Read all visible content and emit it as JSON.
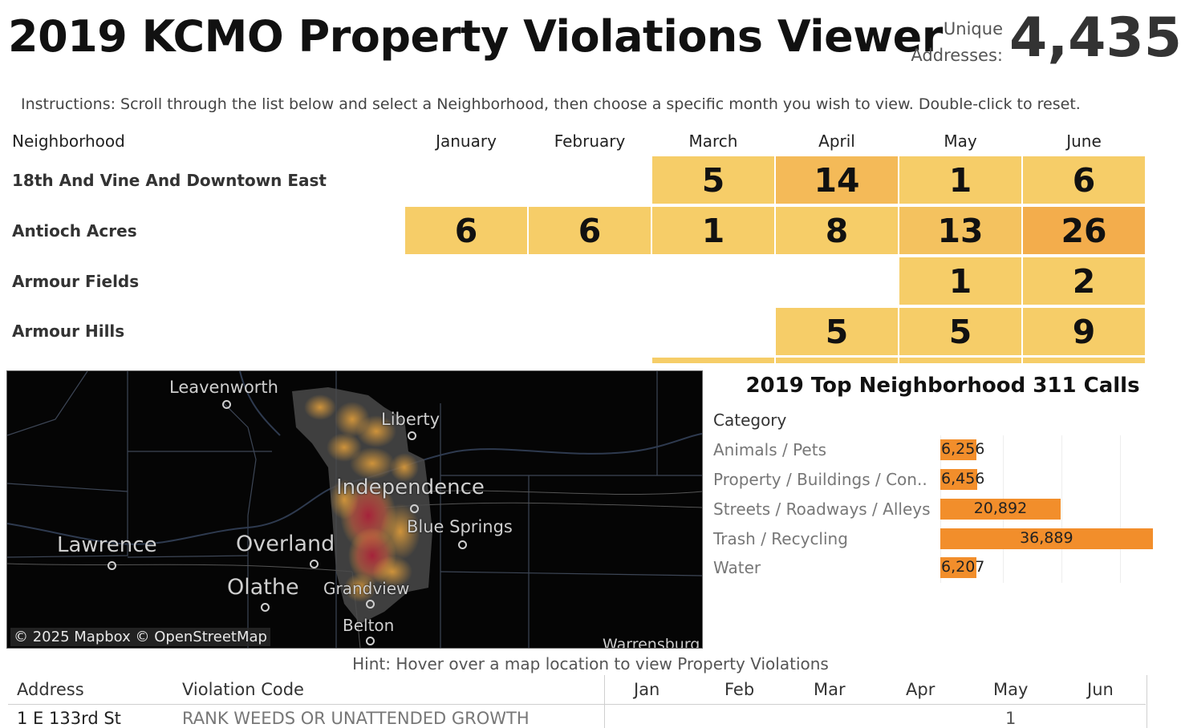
{
  "header": {
    "title": "2019 KCMO Property Violations Viewer",
    "unique_label_line1": "Unique",
    "unique_label_line2": "Addresses:",
    "unique_value": "4,435"
  },
  "instructions": "Instructions: Scroll through the list below and select a Neighborhood, then choose a specific month you wish to view. Double-click to reset.",
  "heat_table": {
    "neighborhood_header": "Neighborhood",
    "months": [
      "January",
      "February",
      "March",
      "April",
      "May",
      "June"
    ],
    "rows": [
      {
        "name": "18th And Vine And Downtown East",
        "values": [
          null,
          null,
          "5",
          "14",
          "1",
          "6"
        ]
      },
      {
        "name": "Antioch Acres",
        "values": [
          "6",
          "6",
          "1",
          "8",
          "13",
          "26"
        ]
      },
      {
        "name": "Armour Fields",
        "values": [
          null,
          null,
          null,
          null,
          "1",
          "2"
        ]
      },
      {
        "name": "Armour Hills",
        "values": [
          null,
          null,
          null,
          "5",
          "5",
          "9"
        ]
      }
    ]
  },
  "map": {
    "labels": [
      "Leavenworth",
      "Liberty",
      "Independence",
      "Blue Springs",
      "Lawrence",
      "Overland",
      "Olathe",
      "Grandview",
      "Belton",
      "Warrensburg"
    ],
    "attribution": "© 2025 Mapbox  © OpenStreetMap"
  },
  "chart_data": {
    "type": "bar",
    "orientation": "horizontal",
    "title": "2019 Top Neighborhood 311 Calls",
    "category_header": "Category",
    "categories": [
      "Animals / Pets",
      "Property / Buildings / Con..",
      "Streets / Roadways / Alleys",
      "Trash / Recycling",
      "Water"
    ],
    "values": [
      6256,
      6456,
      20892,
      36889,
      6207
    ],
    "value_labels": [
      "6,256",
      "6,456",
      "20,892",
      "36,889",
      "6,207"
    ],
    "xlim": [
      0,
      40000
    ],
    "bar_color": "#f28e2b",
    "grid": true
  },
  "hint": "Hint: Hover over a map location to view Property Violations",
  "detail_table": {
    "headers": {
      "address": "Address",
      "violation": "Violation Code",
      "months": [
        "Jan",
        "Feb",
        "Mar",
        "Apr",
        "May",
        "Jun"
      ]
    },
    "rows": [
      {
        "address": "1 E 133rd St",
        "violation": "RANK WEEDS OR UNATTENDED GROWTH",
        "may": "1"
      }
    ]
  },
  "colors": {
    "heat_low": "#f6cd68",
    "heat_mid": "#f4ba58",
    "heat_high": "#f3ad4c",
    "bar": "#f28e2b"
  }
}
